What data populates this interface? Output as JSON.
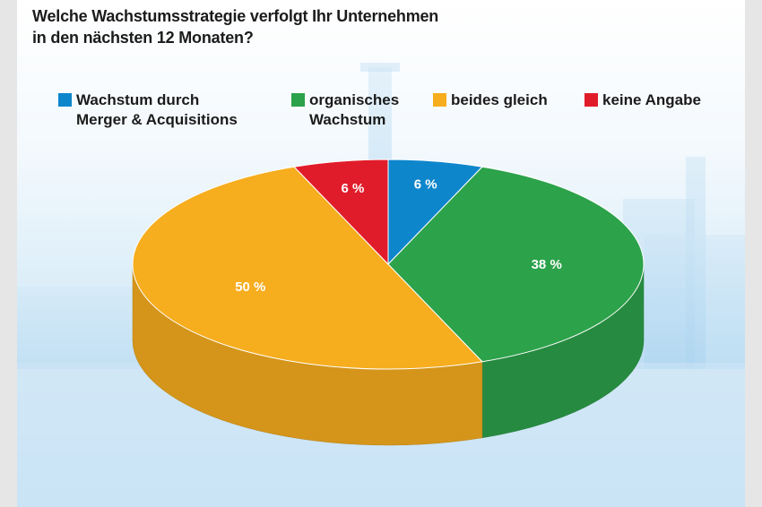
{
  "chart_data": {
    "type": "pie",
    "title_lines": [
      "Welche Wachstumsstrategie verfolgt Ihr Unternehmen",
      "in den nächsten 12 Monaten?"
    ],
    "slices": [
      {
        "name_lines": [
          "Wachstum durch",
          "Merger & Acquisitions"
        ],
        "value": 6,
        "label": "6 %",
        "color": "#0e86cc"
      },
      {
        "name_lines": [
          "organisches",
          "Wachstum"
        ],
        "value": 38,
        "label": "38 %",
        "color": "#2ca24a"
      },
      {
        "name_lines": [
          "beides gleich"
        ],
        "value": 50,
        "label": "50 %",
        "color": "#f6ad1e"
      },
      {
        "name_lines": [
          "keine Angabe"
        ],
        "value": 6,
        "label": "6 %",
        "color": "#e11c2a"
      }
    ],
    "unit": "%",
    "legend_position": "top"
  }
}
